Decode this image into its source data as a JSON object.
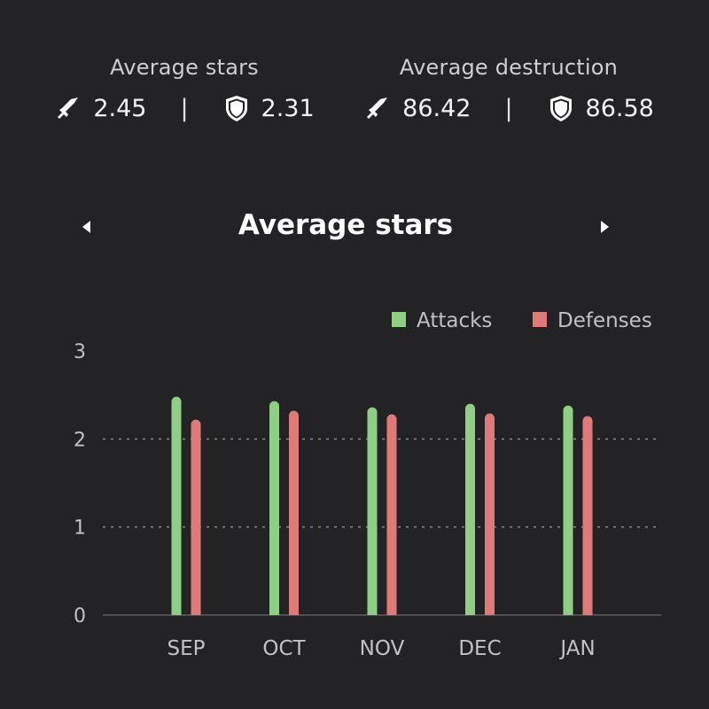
{
  "summary": {
    "stars": {
      "title": "Average stars",
      "attack": "2.45",
      "separator": "|",
      "defense": "2.31"
    },
    "destruction": {
      "title": "Average destruction",
      "attack": "86.42",
      "separator": "|",
      "defense": "86.58"
    }
  },
  "icons": {
    "attack": "sword-icon",
    "defense": "shield-icon",
    "prev": "caret-left-icon",
    "next": "caret-right-icon"
  },
  "colors": {
    "background": "#232325",
    "attacks": "#8ecf83",
    "defenses": "#e07a76",
    "grid": "#8a8a8e",
    "text": "#c2c2c6"
  },
  "chart_data": {
    "type": "bar",
    "title": "Average stars",
    "categories": [
      "SEP",
      "OCT",
      "NOV",
      "DEC",
      "JAN"
    ],
    "series": [
      {
        "name": "Attacks",
        "color": "#8ecf83",
        "values": [
          2.48,
          2.43,
          2.36,
          2.4,
          2.38
        ]
      },
      {
        "name": "Defenses",
        "color": "#e07a76",
        "values": [
          2.22,
          2.32,
          2.28,
          2.29,
          2.26
        ]
      }
    ],
    "yticks": [
      0,
      1,
      2,
      3
    ],
    "ylim": [
      0,
      3
    ],
    "grid": "dashed horizontal lines",
    "legend_position": "top-right"
  }
}
